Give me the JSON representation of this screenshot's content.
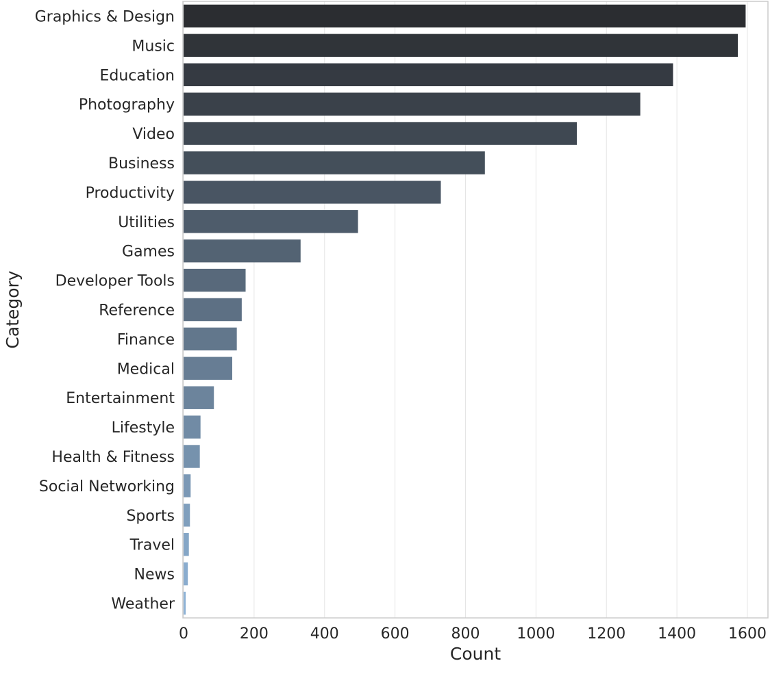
{
  "chart_data": {
    "type": "bar",
    "orientation": "horizontal",
    "title": "",
    "xlabel": "Count",
    "ylabel": "Category",
    "xlim": [
      0,
      1680
    ],
    "xticks": [
      0,
      200,
      400,
      600,
      800,
      1000,
      1200,
      1400,
      1600
    ],
    "grid": "vertical",
    "legend": "none",
    "categories": [
      "Graphics & Design",
      "Music",
      "Education",
      "Photography",
      "Video",
      "Business",
      "Productivity",
      "Utilities",
      "Games",
      "Developer Tools",
      "Reference",
      "Finance",
      "Medical",
      "Entertainment",
      "Lifestyle",
      "Health & Fitness",
      "Social Networking",
      "Sports",
      "Travel",
      "News",
      "Weather"
    ],
    "values": [
      1595,
      1573,
      1389,
      1296,
      1116,
      855,
      730,
      495,
      332,
      176,
      165,
      151,
      138,
      86,
      48,
      46,
      20,
      18,
      15,
      12,
      6
    ],
    "colors": {
      "palette_start": "#2b2d31",
      "palette_end": "#8fb3d6",
      "grid": "#e5e5e5",
      "spine": "#cccccc",
      "text": "#262626"
    }
  }
}
